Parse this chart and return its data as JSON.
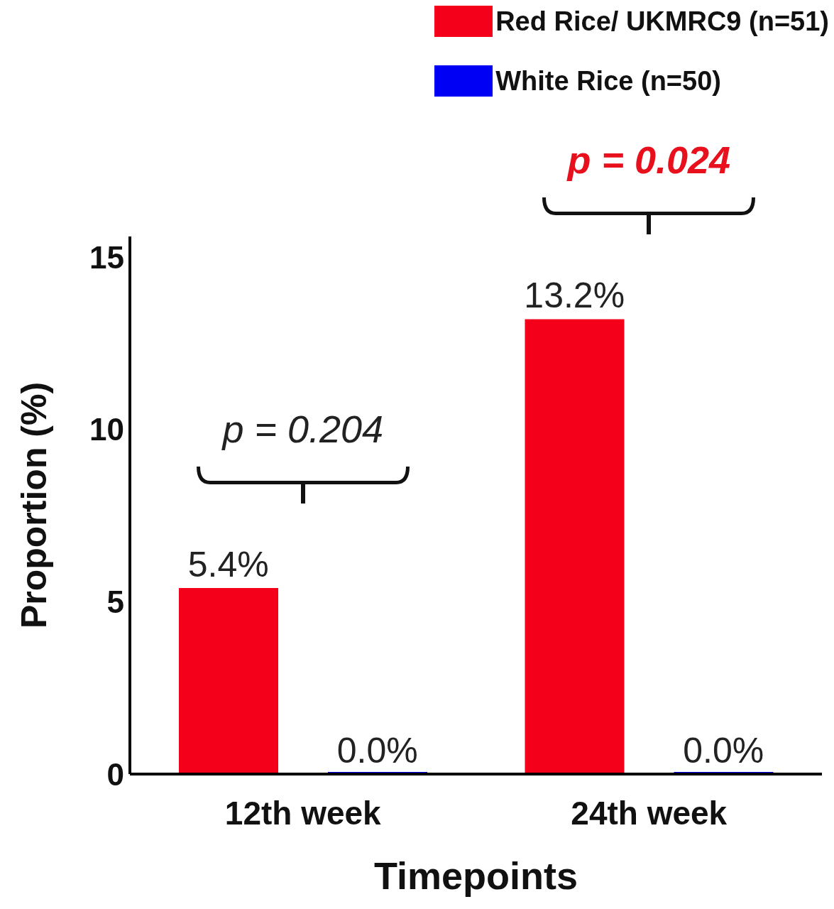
{
  "chart_data": {
    "type": "bar",
    "xlabel": "Timepoints",
    "ylabel": "Proportion (%)",
    "categories": [
      "12th week",
      "24th week"
    ],
    "series": [
      {
        "name": "Red Rice/ UKMRC9 (n=51)",
        "color": "#f5001a",
        "values": [
          5.4,
          13.2
        ],
        "value_labels": [
          "5.4%",
          "13.2%"
        ]
      },
      {
        "name": "White Rice (n=50)",
        "color": "#0000f5",
        "values": [
          0.0,
          0.0
        ],
        "value_labels": [
          "0.0%",
          "0.0%"
        ]
      }
    ],
    "ylim": [
      0,
      15.6
    ],
    "yticks": [
      0,
      5,
      10,
      15
    ],
    "grid": false,
    "legend": "top right",
    "annotations": [
      "p = 0.204",
      "p = 0.024"
    ]
  }
}
